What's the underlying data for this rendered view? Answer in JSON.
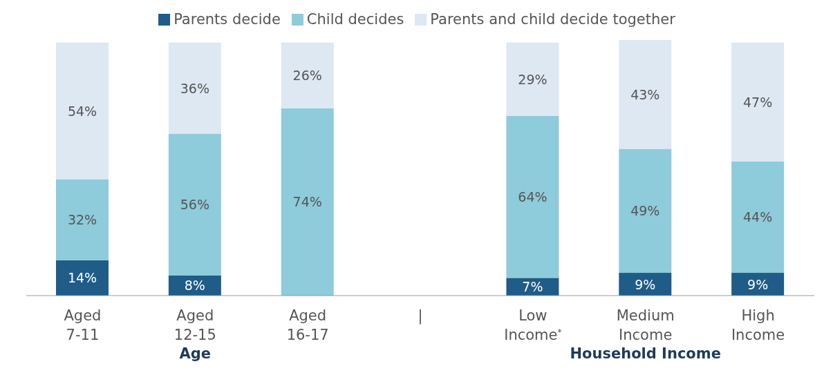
{
  "chart_data": {
    "type": "bar",
    "stacked": true,
    "legend": "top",
    "categories": [
      "Aged 7-11",
      "Aged 12-15",
      "Aged 16-17",
      "|",
      "Low Income$^{*}$",
      "Medium Income",
      "High Income"
    ],
    "series": [
      {
        "name": "Parents decide",
        "color": "#1f5c87",
        "values": [
          14,
          8,
          null,
          null,
          7,
          9,
          9
        ],
        "value_labels": [
          "14%",
          "8%",
          null,
          null,
          "7%",
          "9%",
          "9%"
        ]
      },
      {
        "name": "Child decides",
        "color": "#8ecbdb",
        "values": [
          32,
          56,
          74,
          null,
          64,
          49,
          44
        ],
        "value_labels": [
          "32%",
          "56%",
          "74%",
          null,
          "64%",
          "49%",
          "44%"
        ]
      },
      {
        "name": "Parents and child decide together",
        "color": "#dde8f3",
        "values": [
          54,
          36,
          26,
          null,
          29,
          43,
          47
        ],
        "value_labels": [
          "54%",
          "36%",
          "26%",
          null,
          "29%",
          "43%",
          "47%"
        ]
      }
    ],
    "annotations": [
      "Age",
      "Household Income"
    ]
  }
}
